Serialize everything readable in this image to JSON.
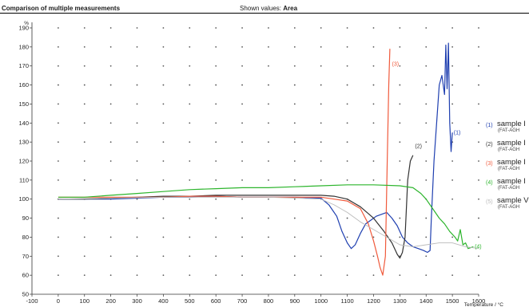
{
  "header": {
    "title": "Comparison of multiple measurements",
    "shown_label": "Shown values:",
    "shown_value": "Area"
  },
  "legend": [
    {
      "num": "(1)",
      "name": "sample I",
      "sub": "(FAT-AGH",
      "color": "#1f3fb0"
    },
    {
      "num": "(2)",
      "name": "sample I",
      "sub": "(FAT-AGH",
      "color": "#333333"
    },
    {
      "num": "(3)",
      "name": "sample I",
      "sub": "(FAT-AGH",
      "color": "#f05a3c"
    },
    {
      "num": "(4)",
      "name": "sample I",
      "sub": "(FAT-AGH",
      "color": "#2db52d"
    },
    {
      "num": "(5)",
      "name": "sample V",
      "sub": "(FAT-AGH",
      "color": "#bbbbbb"
    }
  ],
  "chart_data": {
    "type": "line",
    "ylabel": "%",
    "xlabel": "Temperature / °C",
    "xlim": [
      -100,
      1600
    ],
    "ylim": [
      50,
      190
    ],
    "x_ticks": [
      -100,
      0,
      100,
      200,
      300,
      400,
      500,
      600,
      700,
      800,
      900,
      1000,
      1100,
      1200,
      1300,
      1400,
      1500,
      1600
    ],
    "y_ticks": [
      50,
      60,
      70,
      80,
      90,
      100,
      110,
      120,
      130,
      140,
      150,
      160,
      170,
      180,
      190
    ],
    "grid": true,
    "legend_position": "right",
    "series": [
      {
        "name": "sample I",
        "label": "(1)",
        "color": "#1f3fb0",
        "points": [
          [
            0,
            100
          ],
          [
            100,
            100
          ],
          [
            200,
            100
          ],
          [
            300,
            100.5
          ],
          [
            400,
            101
          ],
          [
            500,
            101
          ],
          [
            600,
            101.5
          ],
          [
            700,
            101
          ],
          [
            800,
            101
          ],
          [
            900,
            101
          ],
          [
            1000,
            100.5
          ],
          [
            1030,
            97
          ],
          [
            1060,
            91
          ],
          [
            1080,
            83
          ],
          [
            1100,
            77
          ],
          [
            1115,
            74
          ],
          [
            1130,
            76
          ],
          [
            1150,
            82
          ],
          [
            1170,
            87
          ],
          [
            1190,
            89
          ],
          [
            1210,
            91
          ],
          [
            1230,
            92
          ],
          [
            1250,
            93
          ],
          [
            1270,
            90
          ],
          [
            1290,
            86
          ],
          [
            1310,
            80
          ],
          [
            1330,
            77
          ],
          [
            1350,
            75
          ],
          [
            1370,
            74
          ],
          [
            1390,
            73
          ],
          [
            1405,
            72
          ],
          [
            1415,
            73
          ],
          [
            1420,
            90
          ],
          [
            1430,
            120
          ],
          [
            1440,
            140
          ],
          [
            1450,
            160
          ],
          [
            1460,
            165
          ],
          [
            1470,
            155
          ],
          [
            1475,
            181
          ],
          [
            1480,
            158
          ],
          [
            1485,
            182
          ],
          [
            1490,
            140
          ],
          [
            1495,
            125
          ],
          [
            1500,
            135
          ]
        ]
      },
      {
        "name": "sample I",
        "label": "(2)",
        "color": "#333333",
        "points": [
          [
            0,
            100
          ],
          [
            100,
            100
          ],
          [
            200,
            100.5
          ],
          [
            300,
            101
          ],
          [
            400,
            101.5
          ],
          [
            500,
            101.5
          ],
          [
            600,
            102
          ],
          [
            700,
            102
          ],
          [
            800,
            102
          ],
          [
            900,
            102
          ],
          [
            1000,
            102
          ],
          [
            1050,
            101.5
          ],
          [
            1100,
            100
          ],
          [
            1150,
            96
          ],
          [
            1200,
            90
          ],
          [
            1240,
            83
          ],
          [
            1270,
            77
          ],
          [
            1290,
            71
          ],
          [
            1300,
            69
          ],
          [
            1310,
            72
          ],
          [
            1320,
            80
          ],
          [
            1330,
            110
          ],
          [
            1340,
            120
          ],
          [
            1350,
            123
          ]
        ]
      },
      {
        "name": "sample I",
        "label": "(3)",
        "color": "#f05a3c",
        "points": [
          [
            0,
            101
          ],
          [
            50,
            101
          ],
          [
            100,
            101
          ],
          [
            200,
            101
          ],
          [
            300,
            101
          ],
          [
            400,
            101
          ],
          [
            500,
            101.5
          ],
          [
            600,
            101.5
          ],
          [
            700,
            101
          ],
          [
            800,
            101
          ],
          [
            900,
            101
          ],
          [
            1000,
            101
          ],
          [
            1050,
            100
          ],
          [
            1100,
            99
          ],
          [
            1150,
            95
          ],
          [
            1180,
            87
          ],
          [
            1200,
            78
          ],
          [
            1215,
            70
          ],
          [
            1225,
            64
          ],
          [
            1235,
            60
          ],
          [
            1245,
            70
          ],
          [
            1252,
            120
          ],
          [
            1258,
            160
          ],
          [
            1262,
            179
          ]
        ]
      },
      {
        "name": "sample I",
        "label": "(4)",
        "color": "#2db52d",
        "points": [
          [
            0,
            101
          ],
          [
            100,
            101
          ],
          [
            200,
            102
          ],
          [
            300,
            103
          ],
          [
            400,
            104
          ],
          [
            500,
            105
          ],
          [
            600,
            105.5
          ],
          [
            700,
            106
          ],
          [
            800,
            106
          ],
          [
            900,
            106.5
          ],
          [
            1000,
            107
          ],
          [
            1100,
            107.5
          ],
          [
            1200,
            107.5
          ],
          [
            1300,
            107
          ],
          [
            1350,
            106
          ],
          [
            1380,
            103
          ],
          [
            1400,
            100
          ],
          [
            1430,
            94
          ],
          [
            1450,
            90
          ],
          [
            1470,
            87
          ],
          [
            1490,
            83
          ],
          [
            1510,
            80
          ],
          [
            1520,
            78
          ],
          [
            1530,
            84
          ],
          [
            1540,
            76
          ],
          [
            1550,
            77
          ],
          [
            1560,
            74
          ],
          [
            1580,
            75
          ]
        ]
      },
      {
        "name": "sample V",
        "label": "(5)",
        "color": "#bbbbbb",
        "points": [
          [
            0,
            100
          ],
          [
            200,
            100.5
          ],
          [
            400,
            101
          ],
          [
            600,
            101
          ],
          [
            800,
            101
          ],
          [
            1000,
            100
          ],
          [
            1050,
            97
          ],
          [
            1100,
            93
          ],
          [
            1150,
            88
          ],
          [
            1200,
            84
          ],
          [
            1250,
            80
          ],
          [
            1300,
            76
          ],
          [
            1350,
            75
          ],
          [
            1400,
            76
          ],
          [
            1450,
            77
          ],
          [
            1500,
            77
          ],
          [
            1550,
            75
          ],
          [
            1600,
            74
          ]
        ]
      }
    ],
    "annotations": [
      {
        "text": "(3)",
        "x": 1270,
        "y": 170,
        "color": "#f05a3c"
      },
      {
        "text": "(2)",
        "x": 1358,
        "y": 127,
        "color": "#333333"
      },
      {
        "text": "(1)",
        "x": 1505,
        "y": 134,
        "color": "#1f3fb0"
      },
      {
        "text": "(4)",
        "x": 1585,
        "y": 74,
        "color": "#2db52d"
      }
    ]
  }
}
